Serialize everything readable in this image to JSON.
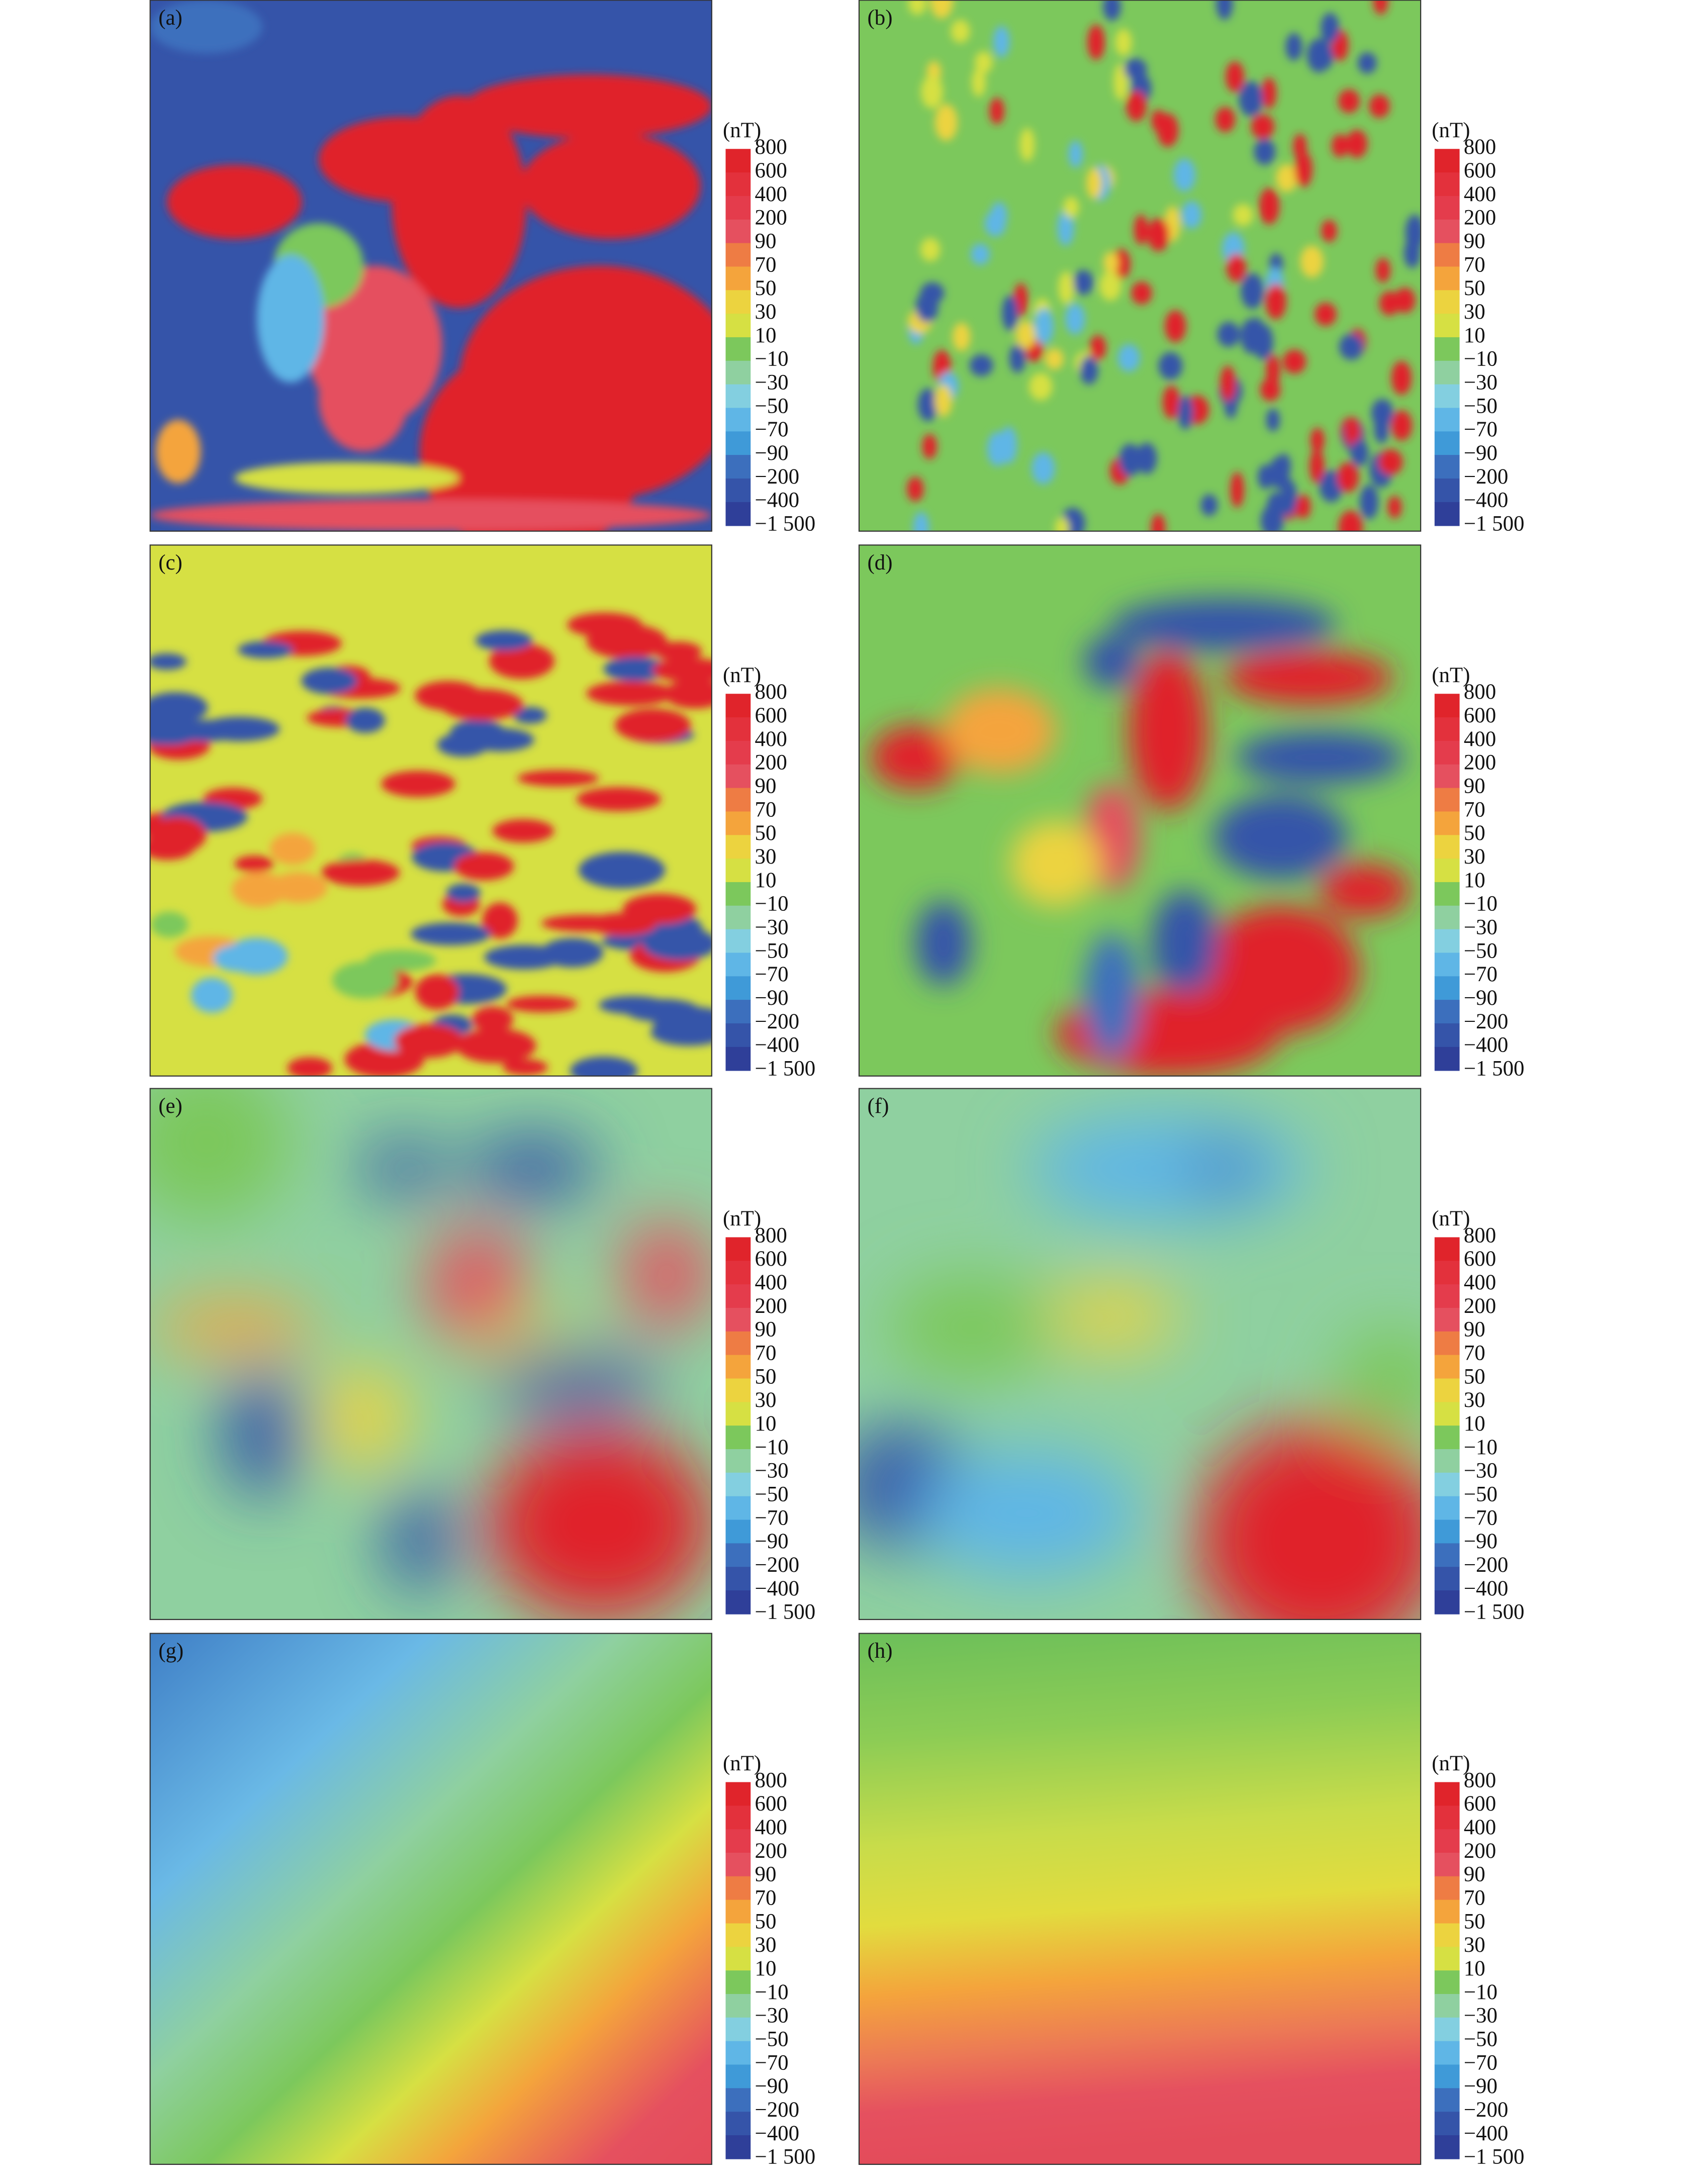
{
  "panels": [
    {
      "label": "(a)"
    },
    {
      "label": "(b)"
    },
    {
      "label": "(c)"
    },
    {
      "label": "(d)"
    },
    {
      "label": "(e)"
    },
    {
      "label": "(f)"
    },
    {
      "label": "(g)"
    },
    {
      "label": "(h)"
    }
  ],
  "colorbar": {
    "unit": "(nT)",
    "labels": [
      "800",
      "600",
      "400",
      "200",
      "90",
      "70",
      "50",
      "30",
      "10",
      "−10",
      "−30",
      "−50",
      "−70",
      "−90",
      "−200",
      "−400",
      "−1 500"
    ],
    "colors": [
      "#e0242b",
      "#e3313c",
      "#e43c4c",
      "#e5505f",
      "#ee7c44",
      "#f4a43c",
      "#ecd33f",
      "#d6e043",
      "#7cc85c",
      "#8fd0a0",
      "#83cfe0",
      "#5fb6e6",
      "#3f9ad8",
      "#3c6fbd",
      "#3554a9",
      "#2f3f99"
    ]
  }
}
